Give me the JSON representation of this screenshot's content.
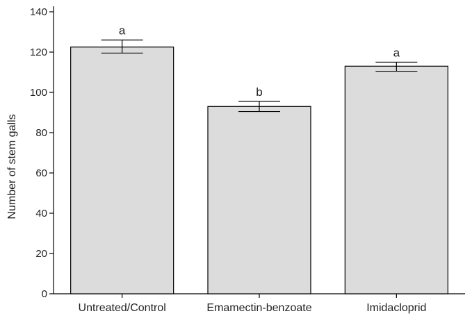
{
  "chart_data": {
    "type": "bar",
    "categories": [
      "Untreated/Control",
      "Emamectin-benzoate",
      "Imidacloprid"
    ],
    "values": [
      122.5,
      93,
      113
    ],
    "error_low": [
      119.5,
      90.5,
      110.5
    ],
    "error_high": [
      126,
      95.5,
      115
    ],
    "significance_labels": [
      "a",
      "b",
      "a"
    ],
    "ylabel": "Number of stem galls",
    "ylim": [
      0,
      140
    ],
    "yticks": [
      0,
      20,
      40,
      60,
      80,
      100,
      120,
      140
    ],
    "grid": false,
    "bar_color": "#dcdcdc",
    "edge_color": "#000000"
  }
}
